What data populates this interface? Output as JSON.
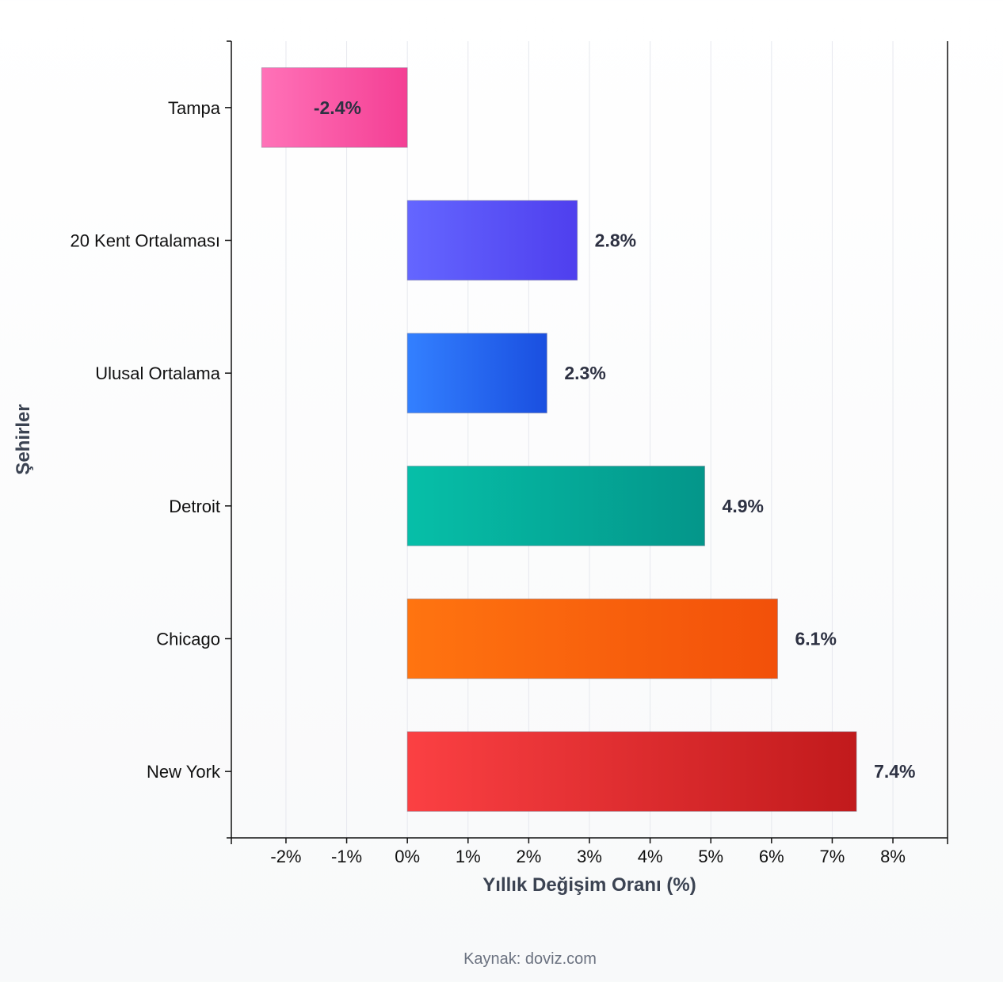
{
  "chart_data": {
    "type": "bar",
    "orientation": "horizontal",
    "categories": [
      "Tampa",
      "20 Kent Ortalaması",
      "Ulusal Ortalama",
      "Detroit",
      "Chicago",
      "New York"
    ],
    "values": [
      -2.4,
      2.8,
      2.3,
      4.9,
      6.1,
      7.4
    ],
    "value_labels": [
      "-2.4%",
      "2.8%",
      "2.3%",
      "4.9%",
      "6.1%",
      "7.4%"
    ],
    "xlabel": "Yıllık Değişim Oranı (%)",
    "ylabel": "Şehirler",
    "xlim": [
      -2.9,
      8.9
    ],
    "xticks": [
      -2,
      -1,
      0,
      1,
      2,
      3,
      4,
      5,
      6,
      7,
      8
    ],
    "xtick_labels": [
      "-2%",
      "-1%",
      "0%",
      "1%",
      "2%",
      "3%",
      "4%",
      "5%",
      "6%",
      "7%",
      "8%"
    ],
    "grid": "vertical",
    "colors": [
      [
        "#ff72b8",
        "#f43f94"
      ],
      [
        "#6466ff",
        "#4f3fee"
      ],
      [
        "#3380ff",
        "#1a4fe0"
      ],
      [
        "#06bfa8",
        "#04968a"
      ],
      [
        "#ff7410",
        "#f2500a"
      ],
      [
        "#fb4043",
        "#c11a1c"
      ]
    ]
  },
  "source": "Kaynak: doviz.com"
}
